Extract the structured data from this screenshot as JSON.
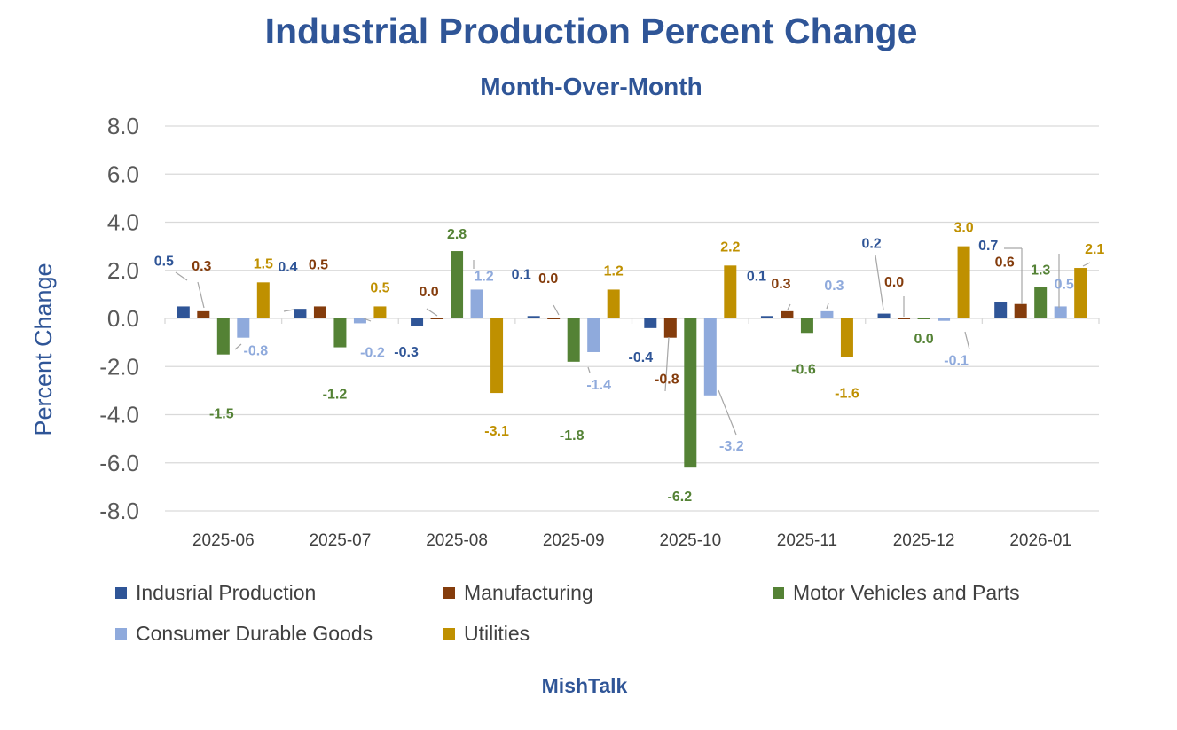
{
  "chart_data": {
    "type": "bar",
    "title": "Industrial Production Percent Change",
    "subtitle": "Month-Over-Month",
    "xlabel": "",
    "ylabel": "Percent Change",
    "ylim": [
      -8,
      8
    ],
    "ytick_step": 2,
    "ytick_labels": [
      "8.0",
      "6.0",
      "4.0",
      "2.0",
      "0.0",
      "-2.0",
      "-4.0",
      "-6.0",
      "-8.0"
    ],
    "grid": true,
    "legend_position": "bottom",
    "categories": [
      "2025-06",
      "2025-07",
      "2025-08",
      "2025-09",
      "2025-10",
      "2025-11",
      "2025-12",
      "2026-01"
    ],
    "series": [
      {
        "name": "Indusrial Production",
        "color": "#2f5597",
        "values": [
          0.5,
          0.4,
          -0.3,
          0.1,
          -0.4,
          0.1,
          0.2,
          0.7
        ],
        "labels": [
          "0.5",
          "0.4",
          "-0.3",
          "0.1",
          "-0.4",
          "0.1",
          "0.2",
          "0.7"
        ]
      },
      {
        "name": "Manufacturing",
        "color": "#843c0c",
        "values": [
          0.3,
          0.5,
          0.0,
          0.0,
          -0.8,
          0.3,
          0.0,
          0.6
        ],
        "labels": [
          "0.3",
          "0.5",
          "0.0",
          "0.0",
          "-0.8",
          "0.3",
          "0.0",
          "0.6"
        ]
      },
      {
        "name": "Motor Vehicles and Parts",
        "color": "#548235",
        "values": [
          -1.5,
          -1.2,
          2.8,
          -1.8,
          -6.2,
          -0.6,
          0.0,
          1.3
        ],
        "labels": [
          "-1.5",
          "-1.2",
          "2.8",
          "-1.8",
          "-6.2",
          "-0.6",
          "0.0",
          "1.3"
        ]
      },
      {
        "name": "Consumer Durable Goods",
        "color": "#8faadc",
        "values": [
          -0.8,
          -0.2,
          1.2,
          -1.4,
          -3.2,
          0.3,
          -0.1,
          0.5
        ],
        "labels": [
          "-0.8",
          "-0.2",
          "1.2",
          "-1.4",
          "-3.2",
          "0.3",
          "-0.1",
          "0.5"
        ]
      },
      {
        "name": "Utilities",
        "color": "#bf9000",
        "values": [
          1.5,
          0.5,
          -3.1,
          1.2,
          2.2,
          -1.6,
          3.0,
          2.1
        ],
        "labels": [
          "1.5",
          "0.5",
          "-3.1",
          "1.2",
          "2.2",
          "-1.6",
          "3.0",
          "2.1"
        ]
      }
    ]
  },
  "source_label": "MishTalk"
}
